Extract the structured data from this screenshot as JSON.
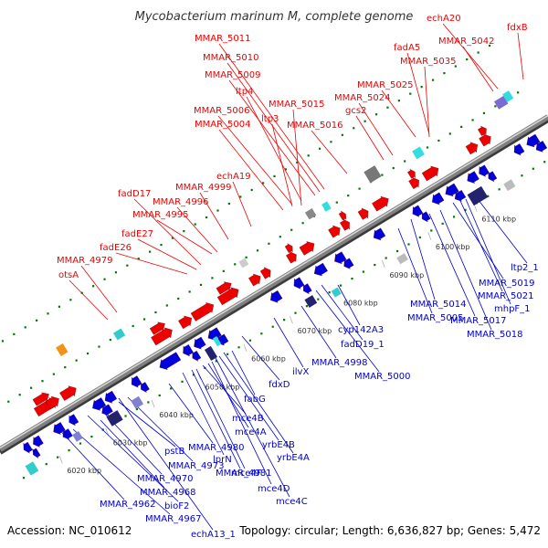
{
  "title": "Mycobacterium marinum M, complete genome",
  "footer": {
    "accession": "Accession: NC_010612",
    "summary": "Topology: circular; Length: 6,636,827 bp; Genes: 5,472"
  },
  "colors": {
    "forward_label": "#ee0000",
    "reverse_label": "#0000cc",
    "forward_gene": "#ee0000",
    "reverse_gene": "#0000dd",
    "backbone": "#808080",
    "dots": "#007700",
    "tick": "#0000cc"
  },
  "ticks": [
    "6020 kbp",
    "6030 kbp",
    "6040 kbp",
    "6050 kbp",
    "6060 kbp",
    "6070 kbp",
    "6080 kbp",
    "6090 kbp",
    "6100 kbp",
    "6110 kbp"
  ],
  "labels_forward": [
    "echA20",
    "fdxB",
    "MMAR_5042",
    "MMAR_5011",
    "MMAR_5010",
    "MMAR_5009",
    "fadA5",
    "MMAR_5035",
    "ltp4",
    "MMAR_5025",
    "MMAR_5015",
    "MMAR_5024",
    "MMAR_5006",
    "ltp3",
    "gcs2",
    "MMAR_5004",
    "MMAR_5016",
    "echA19",
    "MMAR_4999",
    "fadD17",
    "MMAR_4996",
    "MMAR_4995",
    "fadE27",
    "fadE26",
    "MMAR_4979",
    "otsA"
  ],
  "labels_reverse": [
    "MMAR_4962",
    "MMAR_4967",
    "bioF2",
    "MMAR_4968",
    "MMAR_4970",
    "pstB",
    "MMAR_4973",
    "MMAR_4980",
    "lprN",
    "MMAR_4981",
    "mce4F",
    "mce4B",
    "mce4A",
    "mce4D",
    "mce4C",
    "yrbE4B",
    "yrbE4A",
    "fabG",
    "fdxD",
    "ilvX",
    "MMAR_4998",
    "MMAR_5000",
    "fadD19_1",
    "cyp142A3",
    "MMAR_5005",
    "MMAR_5014",
    "MMAR_5017",
    "MMAR_5018",
    "MMAR_5019",
    "MMAR_5021",
    "mhpF_1",
    "ltp2_1",
    "echA13_1"
  ]
}
